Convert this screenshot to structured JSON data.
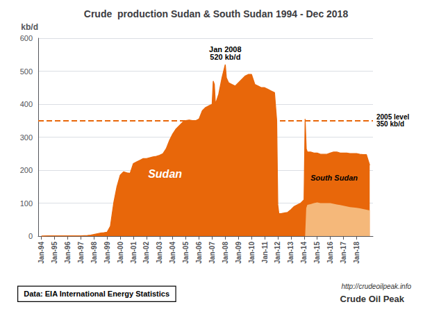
{
  "chart_data": {
    "type": "area",
    "title": "Crude  production Sudan & South Sudan 1994 - Dec 2018",
    "y_label": "kb/d",
    "xlim": [
      1993.75,
      2019.25
    ],
    "xticks": [
      {
        "value": 1994,
        "label": "Jan-94"
      },
      {
        "value": 1995,
        "label": "Jan-95"
      },
      {
        "value": 1996,
        "label": "Jan-96"
      },
      {
        "value": 1997,
        "label": "Jan-97"
      },
      {
        "value": 1998,
        "label": "Jan-98"
      },
      {
        "value": 1999,
        "label": "Jan-99"
      },
      {
        "value": 2000,
        "label": "Jan-00"
      },
      {
        "value": 2001,
        "label": "Jan-01"
      },
      {
        "value": 2002,
        "label": "Jan-02"
      },
      {
        "value": 2003,
        "label": "Jan-03"
      },
      {
        "value": 2004,
        "label": "Jan-04"
      },
      {
        "value": 2005,
        "label": "Jan-05"
      },
      {
        "value": 2006,
        "label": "Jan-06"
      },
      {
        "value": 2007,
        "label": "Jan-07"
      },
      {
        "value": 2008,
        "label": "Jan-08"
      },
      {
        "value": 2009,
        "label": "Jan-09"
      },
      {
        "value": 2010,
        "label": "Jan-10"
      },
      {
        "value": 2011,
        "label": "Jan-11"
      },
      {
        "value": 2012,
        "label": "Jan-12"
      },
      {
        "value": 2013,
        "label": "Jan-13"
      },
      {
        "value": 2014,
        "label": "Jan-14"
      },
      {
        "value": 2015,
        "label": "Jan-15"
      },
      {
        "value": 2016,
        "label": "Jan-16"
      },
      {
        "value": 2017,
        "label": "Jan-17"
      },
      {
        "value": 2018,
        "label": "Jan-18"
      }
    ],
    "ylim": [
      0,
      600
    ],
    "yticks": [
      0,
      100,
      200,
      300,
      400,
      500,
      600
    ],
    "grid": true,
    "series": [
      {
        "name": "Sudan",
        "color": "#E8670A",
        "x": [
          1994.0,
          1994.5,
          1994.75,
          1995.0,
          1995.5,
          1995.75,
          1996.0,
          1996.5,
          1996.75,
          1997.0,
          1997.5,
          1997.75,
          1998.0,
          1998.5,
          1998.75,
          1999.0,
          1999.25,
          1999.5,
          1999.75,
          2000.0,
          2000.25,
          2000.5,
          2000.75,
          2001.0,
          2001.25,
          2001.5,
          2001.75,
          2002.0,
          2002.5,
          2002.75,
          2003.0,
          2003.25,
          2003.5,
          2003.75,
          2004.0,
          2004.25,
          2004.5,
          2004.75,
          2005.0,
          2005.25,
          2005.5,
          2005.75,
          2006.0,
          2006.25,
          2006.5,
          2006.75,
          2007.0,
          2007.083,
          2007.167,
          2007.25,
          2007.5,
          2007.75,
          2008.0,
          2008.083,
          2008.25,
          2008.5,
          2008.75,
          2009.0,
          2009.25,
          2009.5,
          2009.75,
          2010.0,
          2010.25,
          2010.5,
          2010.75,
          2011.0,
          2011.25,
          2011.5,
          2011.75,
          2011.917,
          2012.0,
          2012.083,
          2012.25,
          2012.5,
          2012.75,
          2013.0,
          2013.25,
          2013.5,
          2013.75,
          2014.0,
          2014.083,
          2014.167,
          2014.25,
          2014.5,
          2014.75,
          2015.0,
          2015.25,
          2015.5,
          2015.75,
          2016.0,
          2016.25,
          2016.5,
          2016.75,
          2017.0,
          2017.25,
          2017.5,
          2017.75,
          2018.0,
          2018.25,
          2018.5,
          2018.75,
          2019.0
        ],
        "values": [
          0,
          1,
          1,
          1,
          1,
          1,
          1,
          1,
          1,
          1,
          2,
          3,
          5,
          9,
          10,
          12,
          30,
          100,
          150,
          185,
          195,
          192,
          190,
          220,
          225,
          230,
          235,
          235,
          240,
          242,
          245,
          250,
          265,
          290,
          310,
          325,
          335,
          345,
          350,
          352,
          350,
          350,
          355,
          380,
          390,
          395,
          400,
          470,
          460,
          400,
          430,
          480,
          520,
          480,
          465,
          460,
          455,
          465,
          475,
          485,
          490,
          490,
          460,
          455,
          450,
          450,
          445,
          440,
          435,
          350,
          95,
          68,
          68,
          70,
          72,
          80,
          90,
          95,
          100,
          110,
          355,
          265,
          255,
          255,
          252,
          252,
          248,
          248,
          248,
          252,
          255,
          255,
          252,
          252,
          252,
          250,
          250,
          250,
          248,
          247,
          247,
          215
        ]
      },
      {
        "name": "South Sudan",
        "color": "#F5B87A",
        "x": [
          2013.75,
          2014.0,
          2014.083,
          2014.167,
          2014.25,
          2014.5,
          2014.75,
          2015.0,
          2015.25,
          2015.5,
          2015.75,
          2016.0,
          2016.25,
          2016.5,
          2016.75,
          2017.0,
          2017.25,
          2017.5,
          2017.75,
          2018.0,
          2018.25,
          2018.5,
          2018.75,
          2019.0
        ],
        "values": [
          0,
          0,
          0,
          85,
          95,
          97,
          100,
          102,
          100,
          100,
          100,
          100,
          98,
          96,
          94,
          92,
          90,
          88,
          87,
          86,
          84,
          82,
          80,
          78
        ]
      }
    ],
    "annotations": {
      "peak": [
        "Jan 2008",
        "520 kb/d"
      ],
      "reference_line": {
        "y": 350,
        "label": [
          "2005 level",
          "350 kb/d"
        ]
      },
      "source": "Data: EIA International Energy Statistics",
      "website": "http://crudeoilpeak.info",
      "brand": "Crude Oil Peak"
    }
  }
}
